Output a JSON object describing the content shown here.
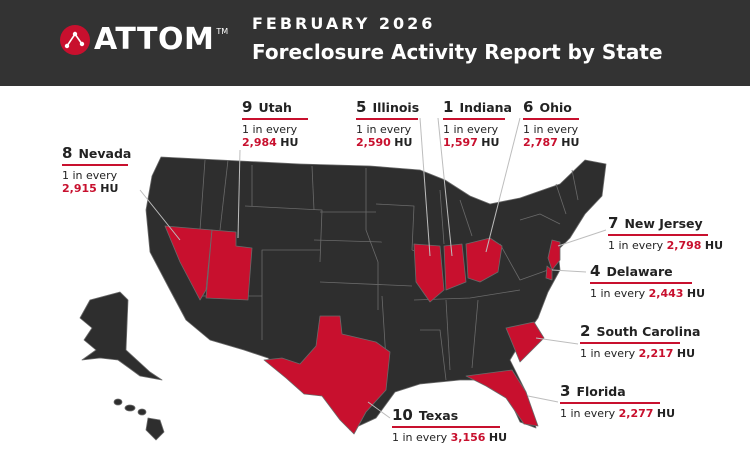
{
  "header": {
    "brand": "ATTOM",
    "tm": "TM",
    "eyebrow": "FEBRUARY 2026",
    "title": "Foreclosure Activity Report by State"
  },
  "colors": {
    "header_bg": "#333333",
    "accent": "#c8102e",
    "state_fill": "#2e2e2e",
    "state_border": "#6a6a6a"
  },
  "unit": "HU",
  "prefix": "1 in every",
  "states": [
    {
      "rank": "9",
      "name": "Utah",
      "value": "2,984"
    },
    {
      "rank": "5",
      "name": "Illinois",
      "value": "2,590"
    },
    {
      "rank": "1",
      "name": "Indiana",
      "value": "1,597"
    },
    {
      "rank": "6",
      "name": "Ohio",
      "value": "2,787"
    },
    {
      "rank": "8",
      "name": "Nevada",
      "value": "2,915"
    },
    {
      "rank": "7",
      "name": "New Jersey",
      "value": "2,798"
    },
    {
      "rank": "4",
      "name": "Delaware",
      "value": "2,443"
    },
    {
      "rank": "2",
      "name": "South Carolina",
      "value": "2,217"
    },
    {
      "rank": "3",
      "name": "Florida",
      "value": "2,277"
    },
    {
      "rank": "10",
      "name": "Texas",
      "value": "3,156"
    }
  ]
}
